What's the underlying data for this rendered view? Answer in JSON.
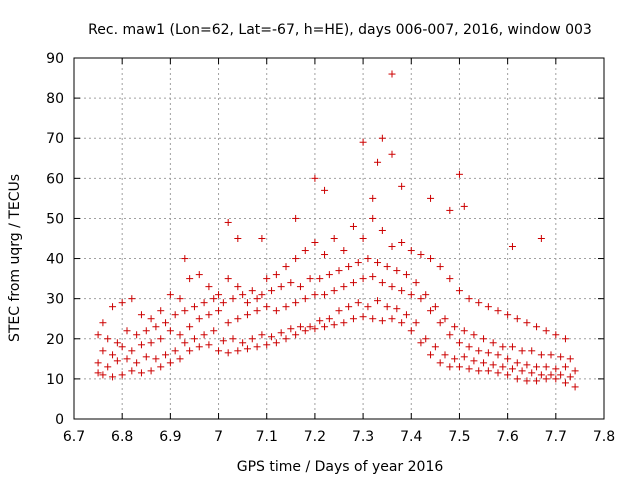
{
  "chart_data": {
    "type": "scatter",
    "title": "Rec. maw1 (Lon=62, Lat=-67, h=HE), days 006-007, 2016, window 003",
    "xlabel": "GPS time / Days of year 2016",
    "ylabel": "STEC from uqrg / TECUs",
    "xlim": [
      6.7,
      7.8
    ],
    "ylim": [
      0,
      90
    ],
    "xticks": [
      "6.7",
      "6.8",
      "6.9",
      "7",
      "7.1",
      "7.2",
      "7.3",
      "7.4",
      "7.5",
      "7.6",
      "7.7",
      "7.8"
    ],
    "yticks": [
      "0",
      "10",
      "20",
      "30",
      "40",
      "50",
      "60",
      "70",
      "80",
      "90"
    ],
    "grid": true,
    "marker": "plus",
    "color": "#cc0000",
    "series": [
      {
        "x": [
          6.75,
          6.76,
          6.78,
          6.8,
          6.82,
          6.84,
          6.86,
          6.88,
          6.9,
          6.92,
          6.94,
          6.96,
          6.98,
          7.0,
          7.02,
          7.04,
          7.06,
          7.08,
          7.1,
          7.12,
          7.14,
          7.16,
          7.18,
          7.2,
          7.22,
          7.24,
          7.26,
          7.28,
          7.3,
          7.32,
          7.34,
          7.36,
          7.38,
          7.4,
          7.42,
          7.44,
          7.46,
          7.48,
          7.5,
          7.52,
          7.54,
          7.56,
          7.58,
          7.6,
          7.62,
          7.64,
          7.66,
          7.68,
          7.7,
          7.72,
          7.74,
          6.75,
          6.77,
          6.79,
          6.81,
          6.83,
          6.85,
          6.87,
          6.89,
          6.91,
          6.93,
          6.95,
          6.97,
          6.99,
          7.01,
          7.03,
          7.05,
          7.07,
          7.09,
          7.11,
          7.13,
          7.15,
          7.17,
          7.19,
          7.21,
          7.23,
          7.25,
          7.27,
          7.29,
          7.31,
          7.33,
          7.35,
          7.37,
          7.39,
          7.41,
          7.43,
          7.45,
          7.47,
          7.49,
          7.51,
          7.53,
          7.55,
          7.57,
          7.59,
          7.61,
          7.63,
          7.65,
          7.67,
          7.69,
          7.71,
          7.73,
          6.76,
          6.78,
          6.8,
          6.82,
          6.84,
          6.86,
          6.88,
          6.9,
          6.92,
          6.94,
          6.96,
          6.98,
          7.0,
          7.02,
          7.04,
          7.06,
          7.08,
          7.1,
          7.12,
          7.14,
          7.16,
          7.18,
          7.2,
          7.22,
          7.24,
          7.26,
          7.28,
          7.3,
          7.32,
          7.34,
          7.36,
          7.38,
          7.4,
          7.42,
          7.44,
          7.46,
          7.48,
          7.5,
          7.52,
          7.54,
          7.56,
          7.58,
          7.6,
          7.62,
          7.64,
          7.66,
          7.68,
          7.7,
          7.72,
          7.74,
          6.75,
          6.77,
          6.79,
          6.81,
          6.83,
          6.85,
          6.87,
          6.89,
          6.91,
          6.93,
          6.95,
          6.97,
          6.99,
          7.01,
          7.03,
          7.05,
          7.07,
          7.09,
          7.11,
          7.13,
          7.15,
          7.17,
          7.19,
          7.21,
          7.23,
          7.25,
          7.27,
          7.29,
          7.31,
          7.33,
          7.35,
          7.37,
          7.39,
          7.41,
          7.43,
          7.45,
          7.47,
          7.49,
          7.51,
          7.53,
          7.55,
          7.57,
          7.59,
          7.61,
          7.63,
          7.65,
          7.67,
          7.69,
          7.71,
          7.73,
          6.76,
          6.78,
          6.8,
          6.82,
          6.84,
          6.86,
          6.88,
          6.9,
          6.92,
          6.94,
          6.96,
          6.98,
          7.0,
          7.02,
          7.04,
          7.06,
          7.08,
          7.1,
          7.12,
          7.14,
          7.16,
          7.18,
          7.2,
          7.22,
          7.24,
          7.26,
          7.28,
          7.3,
          7.32,
          7.34,
          7.36,
          7.38,
          7.4,
          7.42,
          7.44,
          7.46,
          7.48,
          7.5,
          7.52,
          7.54,
          7.56,
          7.58,
          7.6,
          7.62,
          7.64,
          7.66,
          7.68,
          7.7,
          7.72,
          7.3,
          7.34,
          7.36,
          7.36,
          7.5,
          7.2,
          7.22,
          7.33,
          7.32,
          7.38,
          7.44,
          7.51,
          7.48,
          7.04,
          7.02,
          7.09,
          6.93,
          7.16,
          7.61,
          7.67
        ],
        "y": [
          11.5,
          11,
          10.5,
          11,
          12,
          11.5,
          12,
          13,
          14,
          15,
          17,
          18,
          18.5,
          17,
          16.5,
          17,
          17.5,
          18,
          18.5,
          19,
          20,
          21,
          22,
          22.5,
          23,
          23.5,
          24,
          25,
          25.5,
          25,
          24.5,
          25,
          24,
          22,
          19,
          16,
          14,
          13,
          13,
          12.5,
          12,
          12,
          11.5,
          11,
          10,
          9.5,
          9.5,
          10,
          10,
          9,
          8,
          14,
          13,
          14.5,
          15,
          14,
          15.5,
          15,
          16,
          17,
          19,
          20,
          21,
          22,
          19.5,
          20,
          19,
          20,
          21,
          20.5,
          21.5,
          22.5,
          23,
          23,
          24.5,
          25,
          27,
          28,
          29,
          28,
          29.5,
          28,
          27.5,
          26,
          24,
          20,
          18,
          16,
          15,
          15.5,
          14.5,
          14,
          13.5,
          13,
          12.5,
          12,
          11.5,
          11,
          11,
          11,
          10.5,
          17,
          16,
          18,
          17,
          18.5,
          19,
          20,
          22,
          21,
          23,
          25,
          26,
          27,
          24,
          25,
          26,
          27,
          28,
          27,
          28,
          29,
          30,
          31,
          31,
          32,
          33,
          34,
          35,
          35.5,
          34,
          33,
          32,
          31,
          30,
          27,
          24,
          21,
          19,
          18,
          17,
          16.5,
          16,
          15,
          14,
          13.5,
          13,
          13,
          12.5,
          13,
          12,
          21,
          20,
          19,
          22,
          21,
          22,
          23,
          24,
          26,
          27,
          28,
          29,
          30,
          29,
          30,
          31,
          32,
          31,
          32,
          33,
          34,
          33,
          35,
          35,
          36,
          37,
          38,
          39,
          40,
          39,
          38,
          37,
          36,
          34,
          31,
          28,
          25,
          23,
          22,
          21,
          20,
          19,
          18,
          18,
          17,
          17,
          16,
          16,
          15.5,
          15,
          24,
          28,
          29,
          30,
          26,
          25,
          27,
          31,
          30,
          35,
          36,
          33,
          31,
          35,
          33,
          29,
          30,
          35,
          36,
          38,
          40,
          42,
          44,
          41,
          45,
          42,
          48,
          45,
          50,
          47,
          43,
          44,
          42,
          41,
          40,
          38,
          35,
          32,
          30,
          29,
          28,
          27,
          26,
          25,
          24,
          23,
          22,
          21,
          20,
          69,
          70,
          86,
          66,
          61,
          60,
          57,
          64,
          55,
          58,
          55,
          53,
          52,
          45,
          49,
          45,
          40,
          50,
          43,
          45
        ]
      }
    ]
  }
}
